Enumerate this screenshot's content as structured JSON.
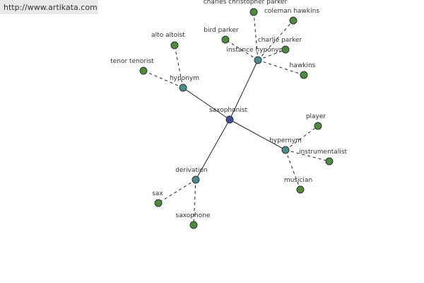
{
  "header": {
    "url": "http://www.artikata.com"
  },
  "nodes": [
    {
      "label": "saxophonist"
    },
    {
      "label": "hyponym"
    },
    {
      "label": "instance hyponym"
    },
    {
      "label": "hypernym"
    },
    {
      "label": "derivation"
    },
    {
      "label": "alto altoist"
    },
    {
      "label": "tenor tenorist"
    },
    {
      "label": "bird parker"
    },
    {
      "label": "charles christopher parker"
    },
    {
      "label": "coleman hawkins"
    },
    {
      "label": "charlie parker"
    },
    {
      "label": "hawkins"
    },
    {
      "label": "player"
    },
    {
      "label": "instrumentalist"
    },
    {
      "label": "musician"
    },
    {
      "label": "sax"
    },
    {
      "label": "saxophone"
    }
  ]
}
